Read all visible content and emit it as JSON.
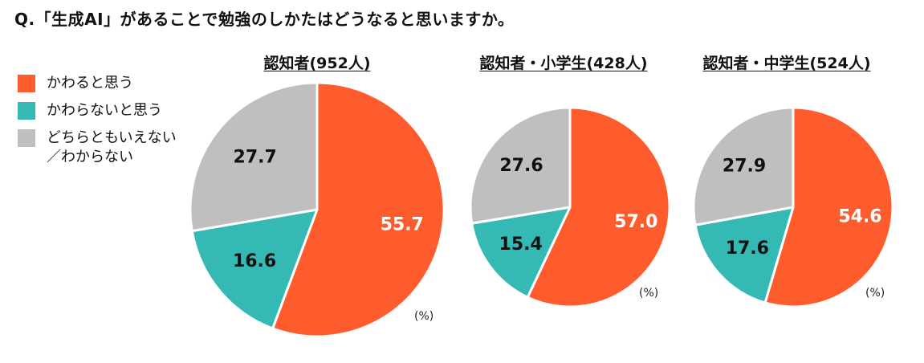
{
  "question": "Q.「生成AI」があることで勉強のしかたはどうなると思いますか。",
  "legend": [
    {
      "label": "かわると思う",
      "color": "#FF5C2E"
    },
    {
      "label": "かわらないと思う",
      "color": "#35B9B4"
    },
    {
      "label": "どちらともいえない\n／わからない",
      "color": "#BFBFBF"
    }
  ],
  "unit_label": "(%)",
  "chart_data": [
    {
      "type": "pie",
      "title": "認知者(952人)",
      "categories": [
        "かわると思う",
        "かわらないと思う",
        "どちらともいえない／わからない"
      ],
      "values": [
        55.7,
        16.6,
        27.7
      ],
      "labels": [
        "55.7",
        "16.6",
        "27.7"
      ],
      "colors": [
        "#FF5C2E",
        "#35B9B4",
        "#BFBFBF"
      ]
    },
    {
      "type": "pie",
      "title": "認知者・小学生(428人)",
      "categories": [
        "かわると思う",
        "かわらないと思う",
        "どちらともいえない／わからない"
      ],
      "values": [
        57.0,
        15.4,
        27.6
      ],
      "labels": [
        "57.0",
        "15.4",
        "27.6"
      ],
      "colors": [
        "#FF5C2E",
        "#35B9B4",
        "#BFBFBF"
      ]
    },
    {
      "type": "pie",
      "title": "認知者・中学生(524人)",
      "categories": [
        "かわると思う",
        "かわらないと思う",
        "どちらともいえない／わからない"
      ],
      "values": [
        54.6,
        17.6,
        27.9
      ],
      "labels": [
        "54.6",
        "17.6",
        "27.9"
      ],
      "colors": [
        "#FF5C2E",
        "#35B9B4",
        "#BFBFBF"
      ]
    }
  ]
}
